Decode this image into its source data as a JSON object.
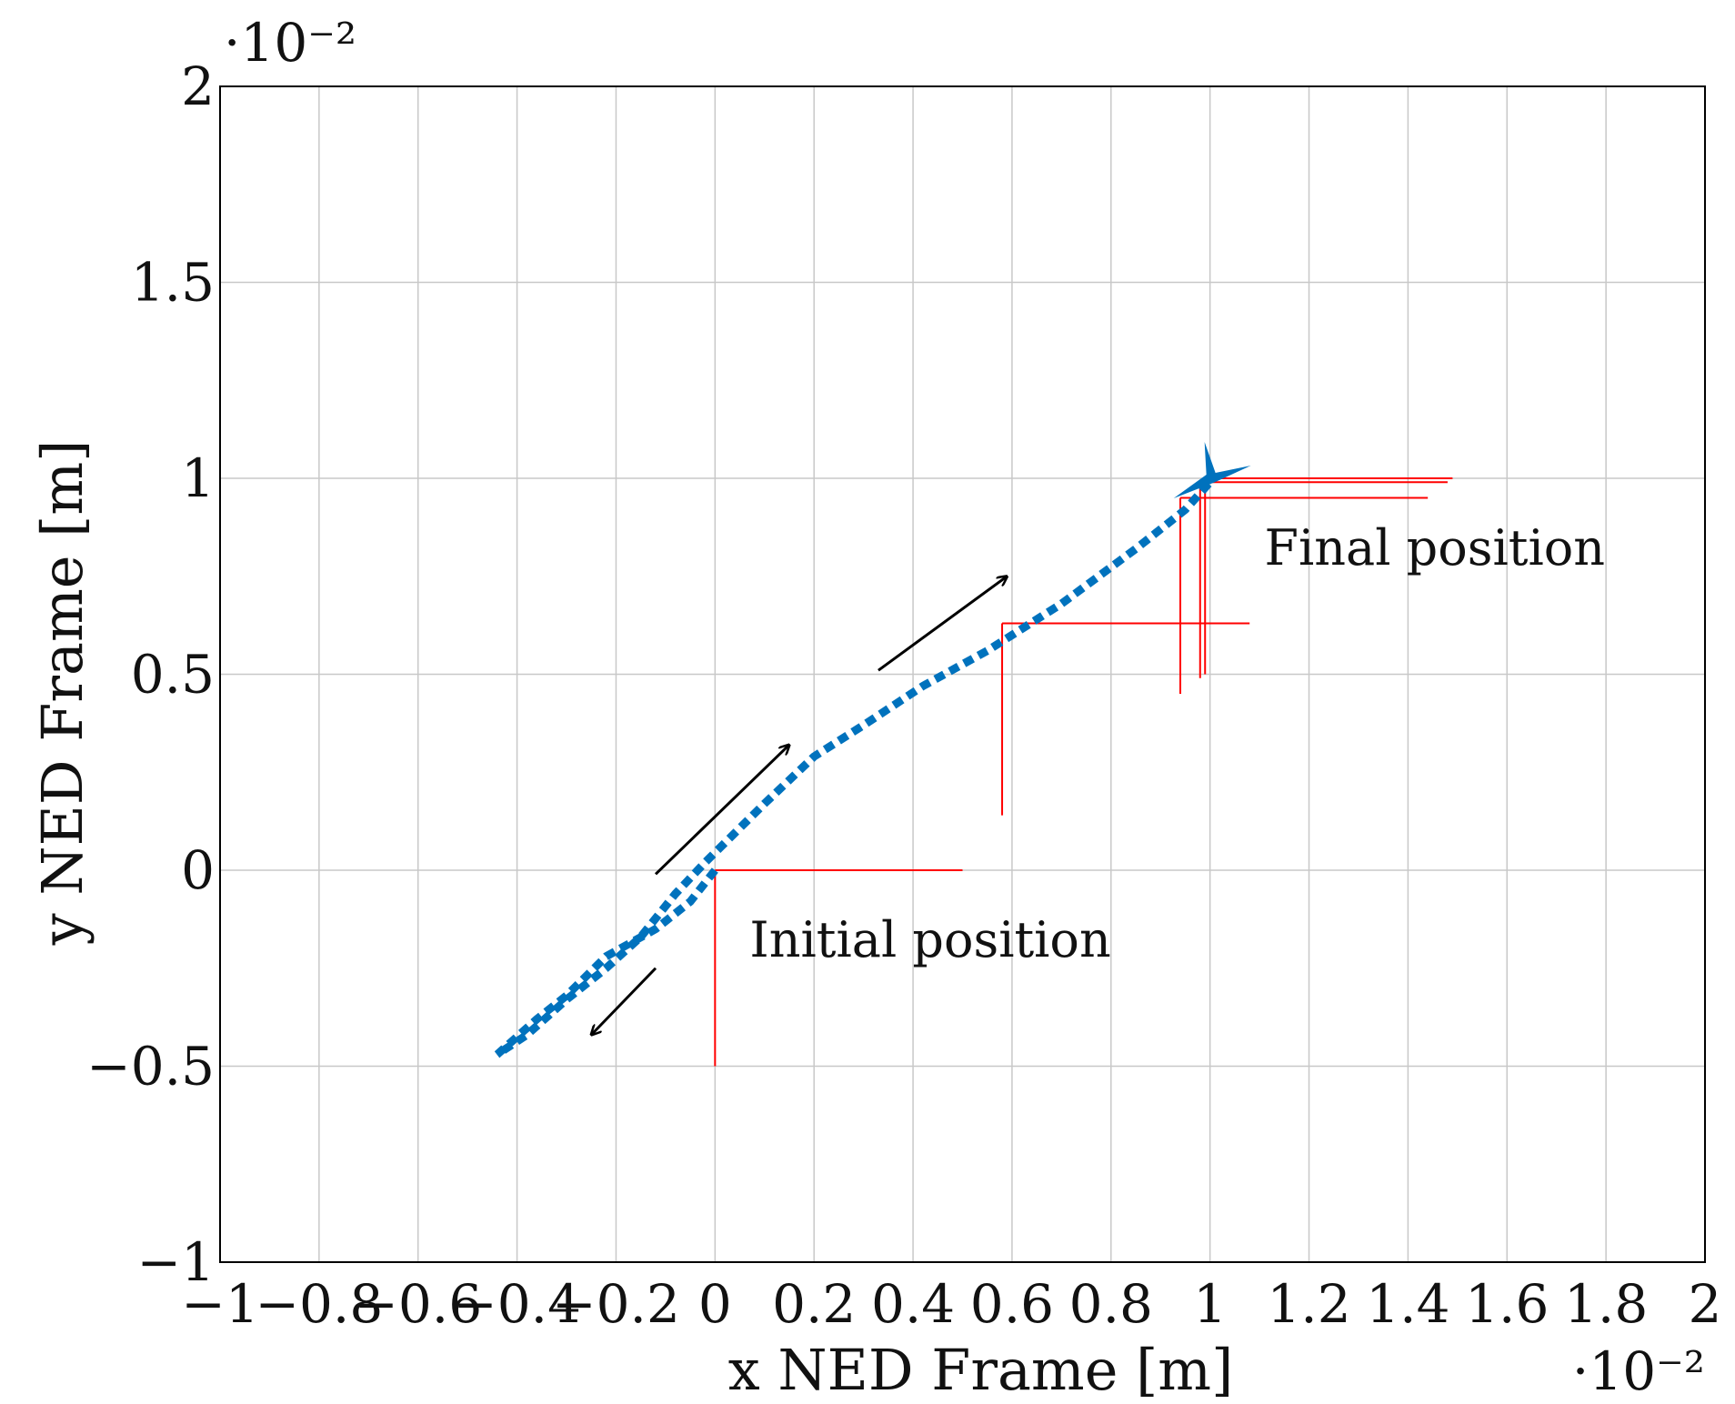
{
  "chart_data": {
    "type": "line",
    "xlabel": "x NED Frame [m]",
    "ylabel": "y NED Frame [m]",
    "xlim": [
      -0.01,
      0.02
    ],
    "ylim": [
      -0.01,
      0.02
    ],
    "x_exponent": "·10⁻²",
    "y_exponent": "·10⁻²",
    "grid": true,
    "x_tick_values": [
      -0.01,
      -0.008,
      -0.006,
      -0.004,
      -0.002,
      0,
      0.002,
      0.004,
      0.006,
      0.008,
      0.01,
      0.012,
      0.014,
      0.016,
      0.018,
      0.02
    ],
    "x_tick_labels": [
      "−1",
      "−0.8",
      "−0.6",
      "−0.4",
      "−0.2",
      "0",
      "0.2",
      "0.4",
      "0.6",
      "0.8",
      "1",
      "1.2",
      "1.4",
      "1.6",
      "1.8",
      "2"
    ],
    "y_tick_values": [
      -0.01,
      -0.005,
      0,
      0.005,
      0.01,
      0.015,
      0.02
    ],
    "y_tick_labels": [
      "−1",
      "−0.5",
      "0",
      "0.5",
      "1",
      "1.5",
      "2"
    ],
    "series": [
      {
        "style": "dotted",
        "color": "#0072BD",
        "points": [
          [
            0,
            0
          ],
          [
            -0.0005,
            -0.0008
          ],
          [
            -0.0012,
            -0.0015
          ],
          [
            -0.0022,
            -0.0022
          ],
          [
            -0.003,
            -0.0032
          ],
          [
            -0.0036,
            -0.0038
          ],
          [
            -0.0044,
            -0.0047
          ],
          [
            -0.0038,
            -0.0042
          ],
          [
            -0.003,
            -0.0033
          ],
          [
            -0.0022,
            -0.0025
          ],
          [
            -0.0015,
            -0.0017
          ],
          [
            -0.0008,
            -0.0006
          ],
          [
            -0.0002,
            0.0002
          ],
          [
            0.001,
            0.0017
          ],
          [
            0.002,
            0.0029
          ],
          [
            0.003,
            0.0037
          ],
          [
            0.0042,
            0.0047
          ],
          [
            0.0055,
            0.0056
          ],
          [
            0.007,
            0.0068
          ],
          [
            0.0085,
            0.0082
          ],
          [
            0.0095,
            0.0092
          ],
          [
            0.01,
            0.0099
          ]
        ]
      },
      {
        "style": "red-frames",
        "color": "#FF0000",
        "segments": [
          [
            [
              0,
              0
            ],
            [
              0.005,
              0
            ]
          ],
          [
            [
              0,
              0
            ],
            [
              0,
              -0.005
            ]
          ],
          [
            [
              0.0058,
              0.0063
            ],
            [
              0.0108,
              0.0063
            ]
          ],
          [
            [
              0.0058,
              0.0063
            ],
            [
              0.0058,
              0.0014
            ]
          ],
          [
            [
              0.0094,
              0.0095
            ],
            [
              0.0144,
              0.0095
            ]
          ],
          [
            [
              0.0094,
              0.0095
            ],
            [
              0.0094,
              0.0045
            ]
          ],
          [
            [
              0.0099,
              0.01
            ],
            [
              0.0149,
              0.01
            ]
          ],
          [
            [
              0.0099,
              0.01
            ],
            [
              0.0099,
              0.005
            ]
          ],
          [
            [
              0.0098,
              0.0099
            ],
            [
              0.0148,
              0.0099
            ]
          ],
          [
            [
              0.0098,
              0.0099
            ],
            [
              0.0098,
              0.0049
            ]
          ]
        ]
      }
    ],
    "final_marker": [
      0.01,
      0.01
    ],
    "annotations": [
      {
        "text": "Initial position",
        "x": 0.0007,
        "y": -0.0022
      },
      {
        "text": "Final position",
        "x": 0.0111,
        "y": 0.0078
      }
    ],
    "arrows": [
      {
        "from": [
          -0.0012,
          -0.0001
        ],
        "to": [
          0.0015,
          0.0032
        ]
      },
      {
        "from": [
          0.0033,
          0.0051
        ],
        "to": [
          0.0059,
          0.0075
        ]
      },
      {
        "from": [
          -0.0012,
          -0.0025
        ],
        "to": [
          -0.0025,
          -0.0042
        ]
      }
    ]
  }
}
